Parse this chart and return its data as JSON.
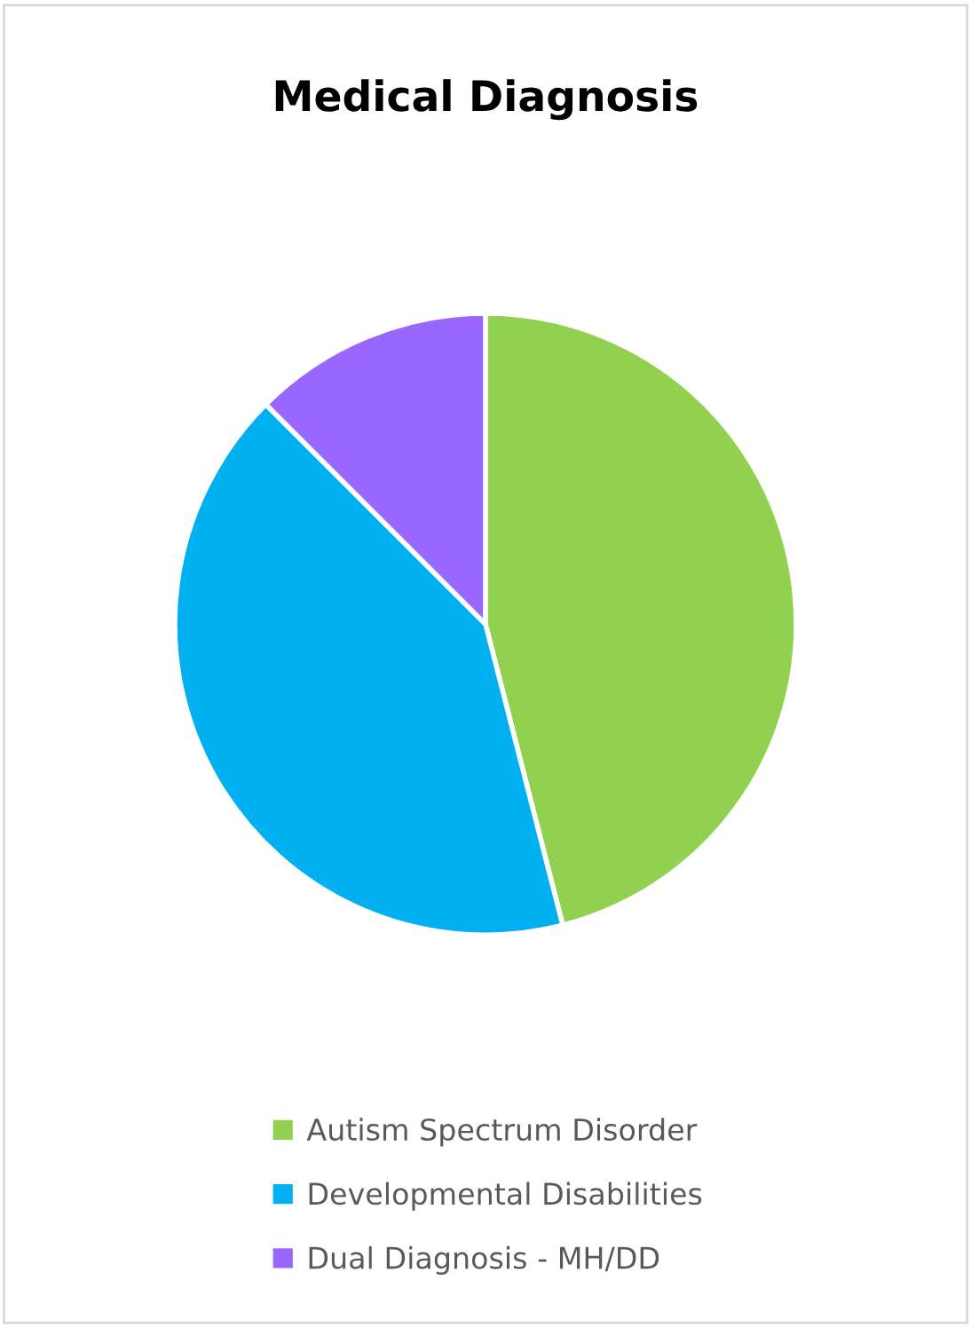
{
  "chart_data": {
    "type": "pie",
    "title": "Medical Diagnosis",
    "categories": [
      "Autism Spectrum Disorder",
      "Developmental Disabilities",
      "Dual Diagnosis - MH/DD"
    ],
    "values": [
      46,
      41.5,
      12.5
    ],
    "colors": [
      "#92d050",
      "#00b0f0",
      "#9966ff"
    ],
    "legend": "bottom"
  }
}
